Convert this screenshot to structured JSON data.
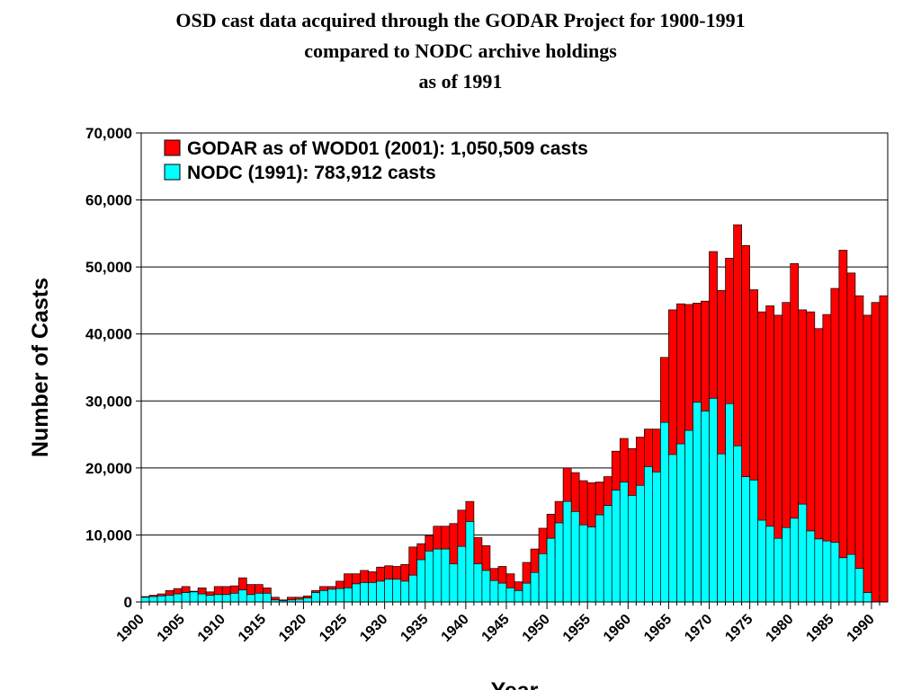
{
  "chart_data": {
    "type": "bar",
    "title": [
      "OSD cast data acquired through the GODAR Project for 1900-1991",
      "compared to NODC archive holdings",
      "as of 1991"
    ],
    "x_label": "Year",
    "y_label": "Number of Casts",
    "categories": [
      "1900",
      null,
      null,
      null,
      null,
      "1905",
      null,
      null,
      null,
      null,
      "1910",
      null,
      null,
      null,
      null,
      "1915",
      null,
      null,
      null,
      null,
      "1920",
      null,
      null,
      null,
      null,
      "1925",
      null,
      null,
      null,
      null,
      "1930",
      null,
      null,
      null,
      null,
      "1935",
      null,
      null,
      null,
      null,
      "1940",
      null,
      null,
      null,
      null,
      "1945",
      null,
      null,
      null,
      null,
      "1950",
      null,
      null,
      null,
      null,
      "1955",
      null,
      null,
      null,
      null,
      "1960",
      null,
      null,
      null,
      null,
      "1965",
      null,
      null,
      null,
      null,
      "1970",
      null,
      null,
      null,
      null,
      "1975",
      null,
      null,
      null,
      null,
      "1980",
      null,
      null,
      null,
      null,
      "1985",
      null,
      null,
      null,
      null,
      "1990",
      null
    ],
    "series": [
      {
        "name": "GODAR as of WOD01 (2001): 1,050,509 casts",
        "color": "#ff0000",
        "values": [
          800,
          1000,
          1200,
          1700,
          2000,
          2300,
          1600,
          2100,
          1500,
          2300,
          2300,
          2400,
          3600,
          2600,
          2600,
          2100,
          700,
          300,
          700,
          700,
          900,
          1700,
          2300,
          2300,
          3100,
          4200,
          4200,
          4700,
          4500,
          5200,
          5400,
          5300,
          5600,
          8200,
          8700,
          9900,
          11300,
          11300,
          11700,
          13700,
          15000,
          9600,
          8400,
          5000,
          5300,
          4200,
          3000,
          5900,
          7900,
          11000,
          13100,
          15000,
          20000,
          19300,
          18100,
          17800,
          17900,
          18700,
          22500,
          24400,
          22900,
          24600,
          25800,
          25800,
          36500,
          43600,
          44500,
          44400,
          44600,
          44900,
          52300,
          46500,
          51300,
          56300,
          53200,
          46600,
          43300,
          44200,
          42800,
          44700,
          50500,
          43600,
          43300,
          40800,
          42900,
          46800,
          52500,
          49100,
          45700,
          42800,
          44700,
          45700
        ]
      },
      {
        "name": "NODC (1991): 783,912 casts",
        "color": "#00ffff",
        "values": [
          700,
          800,
          900,
          1000,
          1200,
          1400,
          1500,
          1200,
          1000,
          1100,
          1100,
          1300,
          1800,
          1100,
          1300,
          1300,
          300,
          200,
          300,
          400,
          600,
          1400,
          1700,
          1900,
          2000,
          2100,
          2700,
          2900,
          2900,
          3100,
          3400,
          3400,
          3100,
          4000,
          6300,
          7600,
          7900,
          7900,
          5700,
          8300,
          12000,
          5700,
          4700,
          3200,
          2800,
          2100,
          1700,
          2800,
          4400,
          7200,
          9500,
          11800,
          15000,
          13500,
          11500,
          11200,
          13000,
          14400,
          16700,
          17900,
          15900,
          17400,
          20200,
          19400,
          26800,
          22000,
          23600,
          25600,
          29800,
          28500,
          30400,
          22100,
          29600,
          23300,
          18700,
          18200,
          12200,
          11300,
          9500,
          11100,
          12500,
          14600,
          10600,
          9400,
          9100,
          8900,
          6600,
          7100,
          5000,
          1400,
          0,
          0
        ]
      }
    ],
    "ylim": [
      0,
      70000
    ],
    "yticks": [
      0,
      {
        "value": 10000,
        "label": "10,000"
      },
      {
        "value": 20000,
        "label": "20,000"
      },
      {
        "value": 30000,
        "label": "30,000"
      },
      {
        "value": 40000,
        "label": "40,000"
      },
      {
        "value": 50000,
        "label": "50,000"
      },
      {
        "value": 60000,
        "label": "60,000"
      },
      {
        "value": 70000,
        "label": "70,000"
      }
    ],
    "grid": true,
    "legend": "upper left"
  }
}
